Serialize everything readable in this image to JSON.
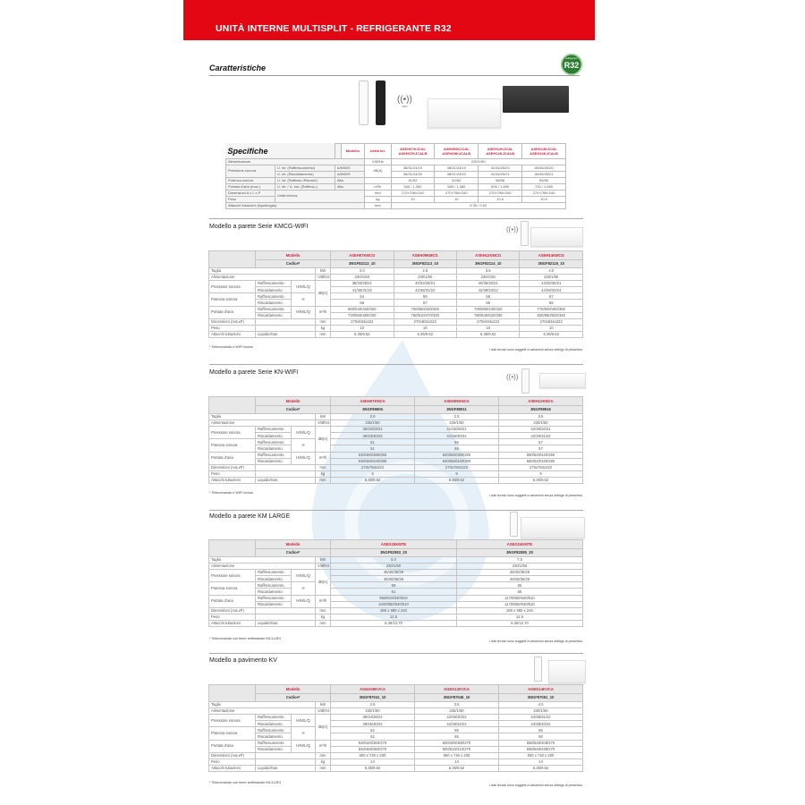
{
  "header": {
    "title": "UNITÀ INTERNE MULTISPLIT - REFRIGERANTE R32"
  },
  "features": {
    "title": "Caratteristiche",
    "badge": "R32",
    "badge_small": "refrigerant",
    "wifi_label": "WiFi"
  },
  "colors": {
    "brand_red": "#e30613",
    "model_red": "#d2233c",
    "badge_green": "#2e7d32",
    "watermark_blue": "#cfe3f3"
  },
  "spec": {
    "title": "Specifiche",
    "col_model": "Modello",
    "col_unit": "Unità Int.",
    "models": [
      [
        "ASEH07KJCAL",
        "ASEH07KJCALB"
      ],
      [
        "ASEH09KJCAL",
        "ASEH09KJCALB"
      ],
      [
        "ASEH12KJCAL",
        "ASEH12KJCALB"
      ],
      [
        "ASEH14KJCAL",
        "ASEH14KJCALB"
      ]
    ],
    "rows": {
      "alim": {
        "label": "Alimentazione",
        "unit": "V/Ø/Hz",
        "value": "230/1/50"
      },
      "pres_label": "Pressione sonora",
      "pres_raff": {
        "sub": "U. int. (Raffrescamento)",
        "mode": "A/M/B/S",
        "values": [
          "38/31/24/19",
          "38/31/24/19",
          "41/34/25/20",
          "45/35/25/20"
        ]
      },
      "pres_risc": {
        "sub": "U. int. (Riscaldamento)",
        "mode": "A/M/B/S",
        "values": [
          "38/31/24/20",
          "38/31/24/20",
          "41/34/25/21",
          "45/35/25/21"
        ]
      },
      "pres_unit": "dB(A)",
      "pot": {
        "label": "Potenza sonora",
        "sub": "U. int. (Raffresc./Riscald.)",
        "mode": "Alta",
        "values": [
          "51/52",
          "52/52",
          "58/58",
          "59/59"
        ]
      },
      "port": {
        "label": "Portata d'aria (max.)",
        "sub": "U. int. / U. est. (Raffresc.)",
        "mode": "Alta",
        "unit": "m³/h",
        "values": [
          "540 / 1.390",
          "580 / 1.480",
          "600 / 1.690",
          "720 / 1.690"
        ]
      },
      "dim": {
        "label": "Dimensioni A x L x P",
        "sub": "Unità interna",
        "unit": "mm",
        "values": [
          "270×798×240",
          "270×798×240",
          "270×798×240",
          "270×798×240"
        ]
      },
      "peso": {
        "label": "Peso",
        "unit": "kg",
        "values": [
          "10",
          "10",
          "10.5",
          "10.5"
        ]
      },
      "att": {
        "label": "Attacchi tubazioni (liquido/gas)",
        "unit": "mm",
        "value": "6.35 / 9.52"
      }
    }
  },
  "labels": {
    "modello": "Modello",
    "codice": "Codice*",
    "alim": "Alimentazione",
    "alim_unit": "V/Ø/Hz",
    "pres": "Pressione sonora",
    "pot": "Potenza sonora",
    "port": "Portata d'aria",
    "raff": "Raffrescamento",
    "risc": "Riscaldamento",
    "hmlq": "H/M/L/Q",
    "h": "H",
    "db": "dB(A)",
    "m3h": "m³/h",
    "dim": "Dimensioni (AxLxP)",
    "peso": "Peso",
    "att": "Attacchi tubazioni",
    "liqgas": "Liquido/Gas",
    "mm": "mm",
    "kg": "kg",
    "kw": "kW",
    "disclaimer": "I dati tecnici sono soggetti a variazioni senza obbligo di preavviso."
  },
  "tables": [
    {
      "title": "Modello a parete Serie KMCG-WIFI",
      "size_label": "Taglia",
      "footnote": "* Telecomando e WIFI inclusi",
      "models": [
        "ASEH07KMCG",
        "ASEH09KMCG",
        "ASEH12KMCG",
        "ASEH14KMCG"
      ],
      "codes": [
        "3NGF82112_10",
        "3NGF82113_10",
        "3NGF82114_10",
        "3NGF82115_10"
      ],
      "taglia": [
        "2.0",
        "2.5",
        "3.5",
        "4.0"
      ],
      "alim": [
        "230/1/50",
        "230/1/50",
        "230/1/50",
        "230/1/50"
      ],
      "pres_raff": [
        "38/33/29/21",
        "40/34/29/21",
        "40/35/30/21",
        "43/36/30/21"
      ],
      "pres_risc": [
        "41/35/31/22",
        "42/36/31/22",
        "42/38/33/22",
        "44/39/33/24"
      ],
      "pot_raff": [
        "54",
        "55",
        "55",
        "57"
      ],
      "pot_risc": [
        "56",
        "57",
        "56",
        "59"
      ],
      "port_raff": [
        "650/540/430/320",
        "700/560/430/320",
        "700/590/430/320",
        "770/600/450/350"
      ],
      "port_risc": [
        "720/580/460/330",
        "750/610/470/330",
        "780/640/520/330",
        "820/660/520/340"
      ],
      "dim": [
        "270x834x222",
        "270x834x222",
        "270x834x222",
        "270x834x222"
      ],
      "peso": [
        "10",
        "10",
        "10",
        "10"
      ],
      "att": [
        "6.35/9.52",
        "6.35/9.52",
        "6.35/9.52",
        "6.35/9.52"
      ]
    },
    {
      "title": "Modello a parete Serie KN-WIFI",
      "size_label": "Taglia",
      "footnote": "* Telecomando e WIFI inclusi",
      "models": [
        "ASEH07KNCA",
        "ASEH09KNCA",
        "ASEH12KNCA"
      ],
      "codes": [
        "3NGF89906",
        "3NGF89911",
        "3NGF89916"
      ],
      "taglia": [
        "2.0",
        "2.5",
        "3.5"
      ],
      "alim": [
        "230/1/50",
        "230/1/50",
        "230/1/50"
      ],
      "pres_raff": [
        "36/33/29/21",
        "41/35/29/21",
        "42/36/32/21"
      ],
      "pres_risc": [
        "36/33/30/22",
        "41/36/30/22",
        "42/35/31/22"
      ],
      "pot_raff": [
        "51",
        "56",
        "57"
      ],
      "pot_risc": [
        "51",
        "56",
        "57"
      ],
      "port_raff": [
        "530/460/390/250",
        "640/560/390/250",
        "660/520/440/250"
      ],
      "port_risc": [
        "530/460/420/280",
        "640/560/420/280",
        "660/520/440/280"
      ],
      "dim": [
        "270x784x222",
        "270x784x222",
        "270x784x222"
      ],
      "peso": [
        "9",
        "9",
        "9"
      ],
      "att": [
        "6.35/9.52",
        "6.35/9.52",
        "6.35/9.52"
      ]
    },
    {
      "title": "Modello a parete KM LARGE",
      "size_label": "Taglia",
      "footnote": "* Telecomando con timer settimanale INCLUSO",
      "models": [
        "ASEG18KMTE",
        "ASEG24KMTE"
      ],
      "codes": [
        "3NGF82083_20",
        "3NGF82085_20"
      ],
      "taglia": [
        "5.0",
        "7.0"
      ],
      "alim": [
        "230/1/50",
        "230/1/50"
      ],
      "pres_raff": [
        "45/40/35/29",
        "49/40/35/29"
      ],
      "pres_risc": [
        "46/40/35/29",
        "49/40/35/29"
      ],
      "pot_raff": [
        "60",
        "65"
      ],
      "pot_risc": [
        "61",
        "65"
      ],
      "port_raff": [
        "960/810/640/510",
        "1170/850/640/510"
      ],
      "port_risc": [
        "1020/850/640/510",
        "1170/850/640/510"
      ],
      "dim": [
        "280 x 980 x 240",
        "280 x 980 x 240"
      ],
      "peso": [
        "12.5",
        "12.5"
      ],
      "att": [
        "6.35/12.70",
        "6.35/12.70"
      ]
    },
    {
      "title": "Modello a pavimento KV",
      "size_label": "Taglie",
      "footnote": "* Telecomando con timer settimanale INCLUSO",
      "models": [
        "AGEG09KVCA",
        "AGEG12KVCA",
        "AGEG14KVCA"
      ],
      "codes": [
        "3NGF87041_10",
        "3NGF87046_10",
        "3NGF87051_10"
      ],
      "taglia": [
        "2.5",
        "3.5",
        "4.0"
      ],
      "alim": [
        "230/1/50",
        "230/1/50",
        "230/1/50"
      ],
      "pres_raff": [
        "39/34/28/22",
        "42/36/30/22",
        "44/38/31/22"
      ],
      "pres_risc": [
        "39/35/30/22",
        "42/38/32/22",
        "44/38/33/22"
      ],
      "pot_raff": [
        "52",
        "55",
        "56"
      ],
      "pot_risc": [
        "52",
        "55",
        "56"
      ],
      "port_raff": [
        "530/440/360/270",
        "600/490/380/270",
        "658/528/408/270"
      ],
      "port_risc": [
        "530/460/360/270",
        "600/510/410/270",
        "658/548/438/270"
      ],
      "dim": [
        "600 x 740 x 200",
        "600 x 740 x 200",
        "600 x 740 x 200"
      ],
      "peso": [
        "14",
        "14",
        "14"
      ],
      "att": [
        "6.35/9.52",
        "6.35/9.52",
        "6.35/9.52"
      ]
    }
  ]
}
